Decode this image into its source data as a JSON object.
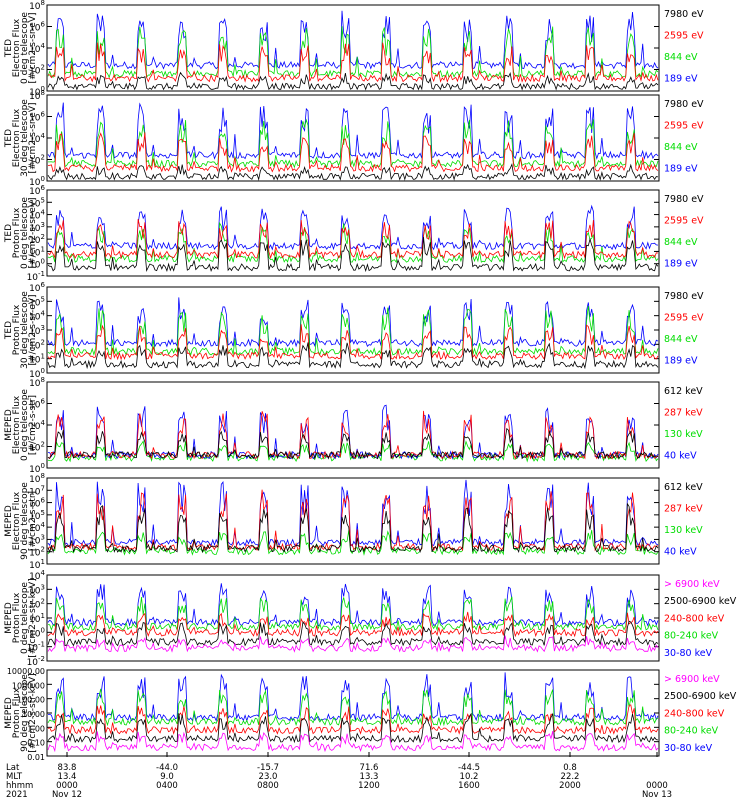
{
  "colors": {
    "black": "#000000",
    "blue": "#0000ff",
    "red": "#ff0000",
    "green": "#00dd00",
    "magenta": "#ff00ff"
  },
  "chart_data": [
    {
      "type": "line",
      "ylabel": [
        "TED",
        "Electron Flux",
        "0 deg telescope",
        "[#/cm2-s-sr-eV]"
      ],
      "yticks": [
        "10^0",
        "10^2",
        "10^4",
        "10^6",
        "10^8"
      ],
      "legend": [
        {
          "label": "7980 eV",
          "color": "#000000"
        },
        {
          "label": "2595 eV",
          "color": "#ff0000"
        },
        {
          "label": "844 eV",
          "color": "#00dd00"
        },
        {
          "label": "189 eV",
          "color": "#0000ff"
        }
      ],
      "series": [
        {
          "color": "#0000ff",
          "base": 0.3,
          "amp": 0.55
        },
        {
          "color": "#00dd00",
          "base": 0.2,
          "amp": 0.5
        },
        {
          "color": "#ff0000",
          "base": 0.15,
          "amp": 0.35
        },
        {
          "color": "#000000",
          "base": 0.05,
          "amp": 0.12
        }
      ]
    },
    {
      "type": "line",
      "ylabel": [
        "TED",
        "Electron Flux",
        "30 deg telescope",
        "[#/cm2-s-sr-eV]"
      ],
      "yticks": [
        "10^0",
        "10^2",
        "10^4",
        "10^6",
        "10^8"
      ],
      "legend": [
        {
          "label": "7980 eV",
          "color": "#000000"
        },
        {
          "label": "2595 eV",
          "color": "#ff0000"
        },
        {
          "label": "844 eV",
          "color": "#00dd00"
        },
        {
          "label": "189 eV",
          "color": "#0000ff"
        }
      ],
      "series": [
        {
          "color": "#0000ff",
          "base": 0.3,
          "amp": 0.55
        },
        {
          "color": "#00dd00",
          "base": 0.2,
          "amp": 0.45
        },
        {
          "color": "#ff0000",
          "base": 0.15,
          "amp": 0.35
        },
        {
          "color": "#000000",
          "base": 0.05,
          "amp": 0.1
        }
      ]
    },
    {
      "type": "line",
      "ylabel": [
        "TED",
        "Proton Flux",
        "0 deg telescope",
        "[#/cm2-s-sr-eV]"
      ],
      "yticks": [
        "10^-1",
        "10^0",
        "10^1",
        "10^2",
        "10^3",
        "10^4",
        "10^5",
        "10^6"
      ],
      "legend": [
        {
          "label": "7980 eV",
          "color": "#000000"
        },
        {
          "label": "2595 eV",
          "color": "#ff0000"
        },
        {
          "label": "844 eV",
          "color": "#00dd00"
        },
        {
          "label": "189 eV",
          "color": "#0000ff"
        }
      ],
      "series": [
        {
          "color": "#0000ff",
          "base": 0.35,
          "amp": 0.4
        },
        {
          "color": "#00dd00",
          "base": 0.2,
          "amp": 0.35
        },
        {
          "color": "#ff0000",
          "base": 0.25,
          "amp": 0.35
        },
        {
          "color": "#000000",
          "base": 0.1,
          "amp": 0.3
        }
      ]
    },
    {
      "type": "line",
      "ylabel": [
        "TED",
        "Proton Flux",
        "30 deg telescope",
        "[#/cm2-s-sr-eV]"
      ],
      "yticks": [
        "10^0",
        "10^1",
        "10^2",
        "10^3",
        "10^4",
        "10^5",
        "10^6"
      ],
      "legend": [
        {
          "label": "7980 eV",
          "color": "#000000"
        },
        {
          "label": "2595 eV",
          "color": "#ff0000"
        },
        {
          "label": "844 eV",
          "color": "#00dd00"
        },
        {
          "label": "189 eV",
          "color": "#0000ff"
        }
      ],
      "series": [
        {
          "color": "#0000ff",
          "base": 0.35,
          "amp": 0.45
        },
        {
          "color": "#00dd00",
          "base": 0.25,
          "amp": 0.45
        },
        {
          "color": "#ff0000",
          "base": 0.2,
          "amp": 0.3
        },
        {
          "color": "#000000",
          "base": 0.1,
          "amp": 0.2
        }
      ]
    },
    {
      "type": "line",
      "ylabel": [
        "MEPED",
        "Electron Flux",
        "0 deg telescope",
        "[#/cm2-s-str]"
      ],
      "yticks": [
        "10^0",
        "10^2",
        "10^4",
        "10^6",
        "10^8"
      ],
      "legend": [
        {
          "label": "612 keV",
          "color": "#000000"
        },
        {
          "label": "287 keV",
          "color": "#ff0000"
        },
        {
          "label": "130 keV",
          "color": "#00dd00"
        },
        {
          "label": "40 keV",
          "color": "#0000ff"
        }
      ],
      "series": [
        {
          "color": "#00dd00",
          "base": 0.12,
          "amp": 0.15
        },
        {
          "color": "#0000ff",
          "base": 0.15,
          "amp": 0.5
        },
        {
          "color": "#ff0000",
          "base": 0.15,
          "amp": 0.45
        },
        {
          "color": "#000000",
          "base": 0.15,
          "amp": 0.25
        }
      ]
    },
    {
      "type": "line",
      "ylabel": [
        "MEPED",
        "Electron Flux",
        "90 deg telescope",
        "[#/cm2-s-str]"
      ],
      "yticks": [
        "10^1",
        "10^2",
        "10^3",
        "10^4",
        "10^5",
        "10^6",
        "10^7",
        "10^8"
      ],
      "legend": [
        {
          "label": "612 keV",
          "color": "#000000"
        },
        {
          "label": "287 keV",
          "color": "#ff0000"
        },
        {
          "label": "130 keV",
          "color": "#00dd00"
        },
        {
          "label": "40 keV",
          "color": "#0000ff"
        }
      ],
      "series": [
        {
          "color": "#00dd00",
          "base": 0.15,
          "amp": 0.2
        },
        {
          "color": "#0000ff",
          "base": 0.25,
          "amp": 0.65
        },
        {
          "color": "#ff0000",
          "base": 0.2,
          "amp": 0.6
        },
        {
          "color": "#000000",
          "base": 0.18,
          "amp": 0.45
        }
      ]
    },
    {
      "type": "line",
      "ylabel": [
        "MEPED",
        "Proton Flux",
        "0 deg telescope",
        "[#/cm2-s-str-keV]"
      ],
      "yticks": [
        "10^-2",
        "10^-1",
        "10^0",
        "10^1",
        "10^2",
        "10^3",
        "10^4"
      ],
      "legend": [
        {
          "label": "> 6900 keV",
          "color": "#ff00ff"
        },
        {
          "label": "2500-6900 keV",
          "color": "#000000"
        },
        {
          "label": "240-800 keV",
          "color": "#ff0000"
        },
        {
          "label": "80-240 keV",
          "color": "#00dd00"
        },
        {
          "label": "30-80 keV",
          "color": "#0000ff"
        }
      ],
      "series": [
        {
          "color": "#0000ff",
          "base": 0.45,
          "amp": 0.4
        },
        {
          "color": "#00dd00",
          "base": 0.4,
          "amp": 0.3
        },
        {
          "color": "#ff0000",
          "base": 0.33,
          "amp": 0.2
        },
        {
          "color": "#000000",
          "base": 0.22,
          "amp": 0.2
        },
        {
          "color": "#ff00ff",
          "base": 0.15,
          "amp": 0.1
        }
      ]
    },
    {
      "type": "line",
      "ylabel": [
        "MEPED",
        "Proton Flux",
        "90 deg telescope",
        "[#/cm2-s-str-keV]"
      ],
      "yticks": [
        "0.01",
        "0.10",
        "1.00",
        "10.00",
        "100.00",
        "1000.00",
        "10000.00"
      ],
      "legend": [
        {
          "label": "> 6900 keV",
          "color": "#ff00ff"
        },
        {
          "label": "2500-6900 keV",
          "color": "#000000"
        },
        {
          "label": "240-800 keV",
          "color": "#ff0000"
        },
        {
          "label": "80-240 keV",
          "color": "#00dd00"
        },
        {
          "label": "30-80 keV",
          "color": "#0000ff"
        }
      ],
      "series": [
        {
          "color": "#0000ff",
          "base": 0.45,
          "amp": 0.45
        },
        {
          "color": "#00dd00",
          "base": 0.4,
          "amp": 0.35
        },
        {
          "color": "#ff0000",
          "base": 0.3,
          "amp": 0.25
        },
        {
          "color": "#000000",
          "base": 0.2,
          "amp": 0.25
        },
        {
          "color": "#ff00ff",
          "base": 0.1,
          "amp": 0.15
        }
      ]
    }
  ],
  "xaxis": {
    "row_labels": [
      "Lat",
      "MLT",
      "hhmm",
      "2021"
    ],
    "columns": [
      {
        "lat": "83.8",
        "mlt": "13.4",
        "hhmm": "0000",
        "date": "Nov 12"
      },
      {
        "lat": "-44.0",
        "mlt": "9.0",
        "hhmm": "0400",
        "date": ""
      },
      {
        "lat": "-15.7",
        "mlt": "23.0",
        "hhmm": "0800",
        "date": ""
      },
      {
        "lat": "71.6",
        "mlt": "13.3",
        "hhmm": "1200",
        "date": ""
      },
      {
        "lat": "-44.5",
        "mlt": "10.2",
        "hhmm": "1600",
        "date": ""
      },
      {
        "lat": "0.8",
        "mlt": "22.2",
        "hhmm": "2000",
        "date": ""
      },
      {
        "lat": "",
        "mlt": "",
        "hhmm": "0000",
        "date": "Nov 13"
      }
    ]
  }
}
